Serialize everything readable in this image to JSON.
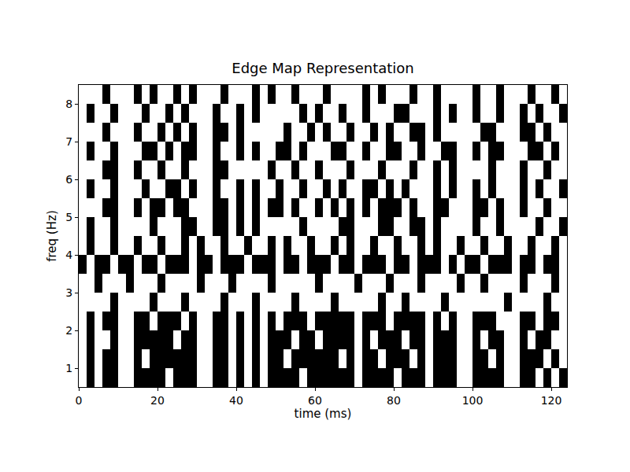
{
  "chart_data": {
    "type": "heatmap",
    "title": "Edge Map Representation",
    "x_label": "time (ms)",
    "y_label": "freq (Hz)",
    "xlim": [
      0,
      124
    ],
    "ylim": [
      0.5,
      8.5
    ],
    "xticks": [
      0,
      20,
      40,
      60,
      80,
      100,
      120
    ],
    "yticks": [
      1,
      2,
      3,
      4,
      5,
      6,
      7,
      8
    ],
    "colors": [
      "#000000",
      "#ffffff"
    ],
    "x": [
      1,
      3,
      5,
      7,
      9,
      11,
      13,
      15,
      17,
      19,
      21,
      23,
      25,
      27,
      29,
      31,
      33,
      35,
      37,
      39,
      41,
      43,
      45,
      47,
      49,
      51,
      53,
      55,
      57,
      59,
      61,
      63,
      65,
      67,
      69,
      71,
      73,
      75,
      77,
      79,
      81,
      83,
      85,
      87,
      89,
      91,
      93,
      95,
      97,
      99,
      101,
      103,
      105,
      107,
      109,
      111,
      113,
      115,
      117,
      119,
      121,
      123
    ],
    "y": [
      0.75,
      1.25,
      1.75,
      2.25,
      2.75,
      3.25,
      3.75,
      4.25,
      4.75,
      5.25,
      5.75,
      6.25,
      6.75,
      7.25,
      7.75,
      8.25
    ],
    "z": [
      [
        1,
        0,
        1,
        0,
        0,
        1,
        1,
        0,
        0,
        0,
        0,
        1,
        0,
        0,
        0,
        1,
        1,
        0,
        0,
        1,
        0,
        1,
        0,
        1,
        0,
        0,
        0,
        0,
        1,
        0,
        0,
        0,
        0,
        0,
        0,
        1,
        0,
        0,
        0,
        0,
        1,
        0,
        0,
        0,
        1,
        0,
        0,
        0,
        1,
        1,
        0,
        0,
        0,
        0,
        1,
        1,
        0,
        0,
        1,
        0,
        1,
        0
      ],
      [
        1,
        0,
        1,
        0,
        0,
        1,
        1,
        0,
        1,
        0,
        0,
        0,
        0,
        0,
        0,
        1,
        1,
        0,
        0,
        1,
        0,
        1,
        0,
        1,
        0,
        0,
        1,
        0,
        0,
        0,
        0,
        0,
        0,
        1,
        0,
        1,
        0,
        0,
        1,
        0,
        0,
        0,
        1,
        0,
        1,
        0,
        0,
        0,
        1,
        1,
        0,
        0,
        1,
        0,
        1,
        1,
        0,
        0,
        0,
        1,
        0,
        1
      ],
      [
        1,
        0,
        1,
        1,
        0,
        1,
        1,
        0,
        0,
        0,
        0,
        0,
        1,
        0,
        0,
        1,
        1,
        0,
        0,
        1,
        0,
        1,
        0,
        1,
        0,
        0,
        0,
        1,
        0,
        0,
        1,
        0,
        0,
        0,
        0,
        1,
        0,
        1,
        0,
        0,
        0,
        1,
        0,
        0,
        1,
        0,
        0,
        0,
        1,
        1,
        0,
        1,
        0,
        0,
        1,
        1,
        0,
        1,
        0,
        0,
        1,
        1
      ],
      [
        1,
        0,
        1,
        0,
        0,
        1,
        1,
        0,
        0,
        1,
        0,
        0,
        0,
        1,
        0,
        1,
        1,
        0,
        0,
        1,
        0,
        1,
        0,
        1,
        0,
        1,
        0,
        0,
        0,
        1,
        0,
        0,
        0,
        0,
        0,
        1,
        0,
        0,
        0,
        1,
        0,
        0,
        0,
        0,
        1,
        0,
        1,
        0,
        1,
        1,
        0,
        0,
        0,
        1,
        1,
        1,
        0,
        0,
        1,
        0,
        0,
        1
      ],
      [
        1,
        1,
        1,
        1,
        0,
        1,
        1,
        1,
        1,
        0,
        1,
        1,
        1,
        0,
        1,
        1,
        1,
        1,
        0,
        1,
        1,
        1,
        0,
        1,
        1,
        1,
        1,
        0,
        1,
        1,
        1,
        1,
        0,
        1,
        1,
        1,
        1,
        1,
        0,
        1,
        1,
        0,
        1,
        1,
        1,
        1,
        0,
        1,
        1,
        1,
        1,
        1,
        1,
        1,
        0,
        1,
        1,
        1,
        1,
        0,
        1,
        1
      ],
      [
        1,
        1,
        0,
        1,
        1,
        1,
        0,
        1,
        1,
        1,
        0,
        1,
        1,
        1,
        1,
        0,
        1,
        1,
        1,
        0,
        1,
        1,
        1,
        1,
        0,
        1,
        1,
        1,
        1,
        1,
        0,
        1,
        1,
        1,
        1,
        0,
        1,
        1,
        1,
        0,
        1,
        1,
        1,
        0,
        1,
        1,
        1,
        1,
        0,
        1,
        1,
        0,
        1,
        1,
        1,
        1,
        0,
        1,
        1,
        1,
        0,
        1
      ],
      [
        0,
        1,
        0,
        0,
        1,
        0,
        0,
        1,
        0,
        0,
        1,
        0,
        0,
        0,
        1,
        0,
        0,
        1,
        0,
        0,
        0,
        1,
        0,
        0,
        0,
        1,
        0,
        0,
        1,
        0,
        0,
        0,
        1,
        0,
        0,
        1,
        0,
        0,
        0,
        1,
        0,
        0,
        1,
        0,
        0,
        0,
        1,
        0,
        1,
        0,
        0,
        1,
        0,
        0,
        0,
        1,
        0,
        0,
        1,
        0,
        0,
        1
      ],
      [
        1,
        0,
        1,
        1,
        0,
        1,
        1,
        0,
        1,
        1,
        0,
        1,
        1,
        0,
        1,
        0,
        1,
        1,
        0,
        1,
        1,
        0,
        1,
        1,
        0,
        1,
        0,
        1,
        1,
        0,
        1,
        1,
        0,
        1,
        0,
        1,
        1,
        0,
        1,
        1,
        0,
        1,
        1,
        0,
        1,
        0,
        1,
        1,
        0,
        1,
        1,
        0,
        1,
        1,
        0,
        1,
        1,
        0,
        1,
        1,
        0,
        1
      ],
      [
        1,
        0,
        1,
        1,
        0,
        1,
        1,
        1,
        1,
        0,
        1,
        1,
        1,
        0,
        0,
        1,
        1,
        0,
        0,
        1,
        0,
        1,
        0,
        1,
        1,
        1,
        1,
        1,
        0,
        1,
        1,
        1,
        1,
        0,
        0,
        1,
        1,
        1,
        0,
        0,
        1,
        1,
        0,
        0,
        1,
        0,
        1,
        1,
        1,
        1,
        0,
        1,
        1,
        0,
        1,
        1,
        1,
        1,
        0,
        1,
        1,
        0
      ],
      [
        1,
        1,
        1,
        0,
        0,
        1,
        1,
        0,
        1,
        0,
        0,
        1,
        0,
        0,
        1,
        1,
        1,
        0,
        0,
        1,
        0,
        1,
        0,
        1,
        0,
        0,
        1,
        0,
        1,
        1,
        0,
        1,
        0,
        1,
        0,
        1,
        0,
        1,
        0,
        0,
        0,
        1,
        0,
        1,
        1,
        0,
        0,
        1,
        1,
        1,
        0,
        0,
        1,
        0,
        1,
        1,
        0,
        1,
        1,
        0,
        1,
        1
      ],
      [
        1,
        0,
        1,
        1,
        0,
        1,
        1,
        1,
        0,
        1,
        1,
        0,
        0,
        1,
        0,
        1,
        1,
        0,
        1,
        1,
        0,
        1,
        0,
        1,
        1,
        0,
        1,
        1,
        0,
        1,
        1,
        0,
        1,
        0,
        1,
        1,
        0,
        0,
        1,
        0,
        1,
        0,
        1,
        1,
        1,
        0,
        1,
        0,
        1,
        1,
        0,
        1,
        0,
        1,
        1,
        1,
        0,
        1,
        0,
        1,
        1,
        0
      ],
      [
        1,
        1,
        1,
        0,
        0,
        1,
        1,
        0,
        1,
        1,
        0,
        1,
        1,
        0,
        1,
        1,
        1,
        0,
        0,
        1,
        1,
        1,
        1,
        1,
        0,
        1,
        1,
        0,
        1,
        1,
        0,
        1,
        1,
        1,
        0,
        1,
        1,
        1,
        0,
        1,
        1,
        1,
        0,
        1,
        1,
        0,
        1,
        0,
        1,
        1,
        1,
        1,
        0,
        1,
        1,
        1,
        0,
        1,
        1,
        0,
        1,
        1
      ],
      [
        1,
        0,
        1,
        1,
        0,
        1,
        1,
        1,
        0,
        0,
        1,
        0,
        1,
        0,
        0,
        1,
        1,
        0,
        1,
        1,
        0,
        1,
        0,
        1,
        1,
        0,
        0,
        1,
        0,
        1,
        1,
        1,
        0,
        0,
        1,
        1,
        0,
        1,
        1,
        0,
        0,
        1,
        1,
        0,
        1,
        1,
        0,
        0,
        1,
        1,
        0,
        1,
        0,
        0,
        1,
        1,
        1,
        0,
        0,
        1,
        0,
        1
      ],
      [
        1,
        1,
        1,
        0,
        1,
        1,
        1,
        0,
        1,
        1,
        0,
        1,
        0,
        1,
        0,
        1,
        1,
        0,
        0,
        1,
        0,
        1,
        1,
        1,
        1,
        1,
        0,
        1,
        1,
        0,
        1,
        0,
        1,
        1,
        0,
        1,
        1,
        0,
        1,
        0,
        1,
        1,
        0,
        0,
        1,
        0,
        1,
        1,
        1,
        1,
        1,
        0,
        0,
        1,
        1,
        1,
        0,
        0,
        1,
        0,
        1,
        1
      ],
      [
        1,
        0,
        1,
        1,
        0,
        1,
        1,
        1,
        0,
        1,
        1,
        0,
        1,
        0,
        1,
        1,
        1,
        0,
        1,
        1,
        0,
        1,
        0,
        1,
        1,
        1,
        1,
        1,
        0,
        1,
        0,
        1,
        1,
        0,
        1,
        1,
        0,
        1,
        1,
        1,
        0,
        0,
        1,
        1,
        1,
        0,
        1,
        0,
        1,
        1,
        0,
        1,
        1,
        0,
        1,
        1,
        0,
        1,
        0,
        1,
        1,
        0
      ],
      [
        1,
        1,
        1,
        0,
        1,
        1,
        1,
        0,
        1,
        0,
        1,
        1,
        0,
        1,
        0,
        1,
        1,
        1,
        0,
        1,
        1,
        1,
        0,
        1,
        0,
        1,
        1,
        0,
        1,
        1,
        1,
        0,
        1,
        1,
        1,
        1,
        0,
        1,
        0,
        1,
        1,
        1,
        0,
        1,
        1,
        0,
        1,
        1,
        1,
        1,
        0,
        1,
        1,
        0,
        1,
        1,
        1,
        0,
        1,
        1,
        0,
        1
      ]
    ]
  }
}
